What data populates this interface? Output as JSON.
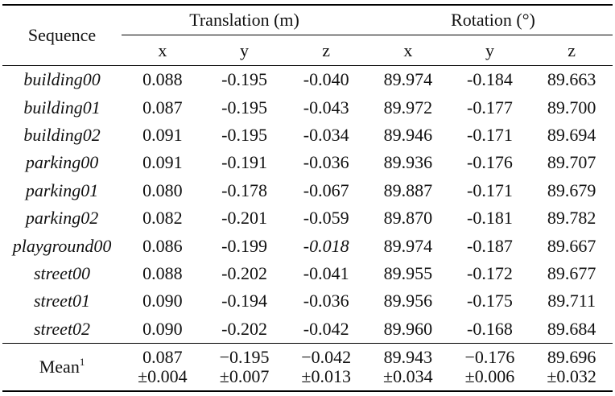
{
  "table": {
    "header": {
      "sequence": "Sequence",
      "translation": "Translation (m)",
      "rotation": "Rotation (°)",
      "axes": [
        "x",
        "y",
        "z",
        "x",
        "y",
        "z"
      ]
    },
    "rows": [
      {
        "name": "building00",
        "values": [
          "0.088",
          "-0.195",
          "-0.040",
          "89.974",
          "-0.184",
          "89.663"
        ]
      },
      {
        "name": "building01",
        "values": [
          "0.087",
          "-0.195",
          "-0.043",
          "89.972",
          "-0.177",
          "89.700"
        ]
      },
      {
        "name": "building02",
        "values": [
          "0.091",
          "-0.195",
          "-0.034",
          "89.946",
          "-0.171",
          "89.694"
        ]
      },
      {
        "name": "parking00",
        "values": [
          "0.091",
          "-0.191",
          "-0.036",
          "89.936",
          "-0.176",
          "89.707"
        ]
      },
      {
        "name": "parking01",
        "values": [
          "0.080",
          "-0.178",
          "-0.067",
          "89.887",
          "-0.171",
          "89.679"
        ]
      },
      {
        "name": "parking02",
        "values": [
          "0.082",
          "-0.201",
          "-0.059",
          "89.870",
          "-0.181",
          "89.782"
        ]
      },
      {
        "name": "playground00",
        "values": [
          "0.086",
          "-0.199",
          "-0.018",
          "89.974",
          "-0.187",
          "89.667"
        ]
      },
      {
        "name": "street00",
        "values": [
          "0.088",
          "-0.202",
          "-0.041",
          "89.955",
          "-0.172",
          "89.677"
        ]
      },
      {
        "name": "street01",
        "values": [
          "0.090",
          "-0.194",
          "-0.036",
          "89.956",
          "-0.175",
          "89.711"
        ]
      },
      {
        "name": "street02",
        "values": [
          "0.090",
          "-0.202",
          "-0.042",
          "89.960",
          "-0.168",
          "89.684"
        ]
      }
    ],
    "mean": {
      "label": "Mean",
      "footnote": "1",
      "values": [
        "0.087",
        "−0.195",
        "−0.042",
        "89.943",
        "−0.176",
        "89.696"
      ],
      "stds": [
        "±0.004",
        "±0.007",
        "±0.013",
        "±0.034",
        "±0.006",
        "±0.032"
      ]
    },
    "emphasis": {
      "row": 6,
      "col": 2
    }
  }
}
